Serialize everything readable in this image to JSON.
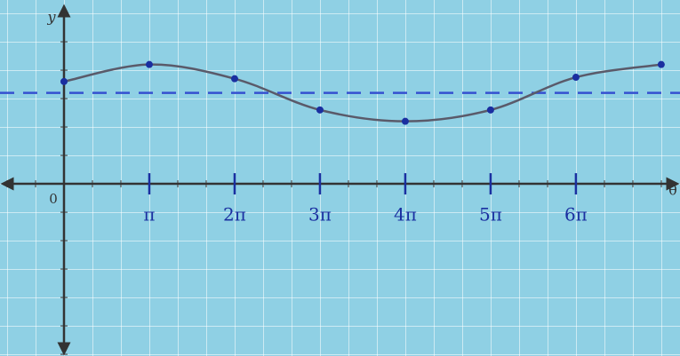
{
  "chart_data": {
    "type": "line",
    "xlabel": "θ",
    "ylabel": "y",
    "x": [
      0,
      1,
      2,
      3,
      4,
      5,
      6,
      7
    ],
    "series": [
      {
        "color": "#5a5a6a",
        "values": [
          3.6,
          4.2,
          3.7,
          2.6,
          2.2,
          2.6,
          3.75,
          4.2
        ]
      }
    ],
    "marker_color": "#1a2fa0",
    "hlines": [
      {
        "y": 3.2,
        "color": "#3550d0",
        "style": "dashed"
      }
    ],
    "xlim": [
      -0.75,
      7.22
    ],
    "ylim": [
      -6.06,
      6.47
    ],
    "xticks": [
      {
        "value": 0,
        "label": "0"
      },
      {
        "value": 1,
        "label": "π"
      },
      {
        "value": 2,
        "label": "2π"
      },
      {
        "value": 3,
        "label": "3π"
      },
      {
        "value": 4,
        "label": "4π"
      },
      {
        "value": 5,
        "label": "5π"
      },
      {
        "value": 6,
        "label": "6π"
      }
    ],
    "tick_color": "#1a2fa0",
    "grid": true
  }
}
